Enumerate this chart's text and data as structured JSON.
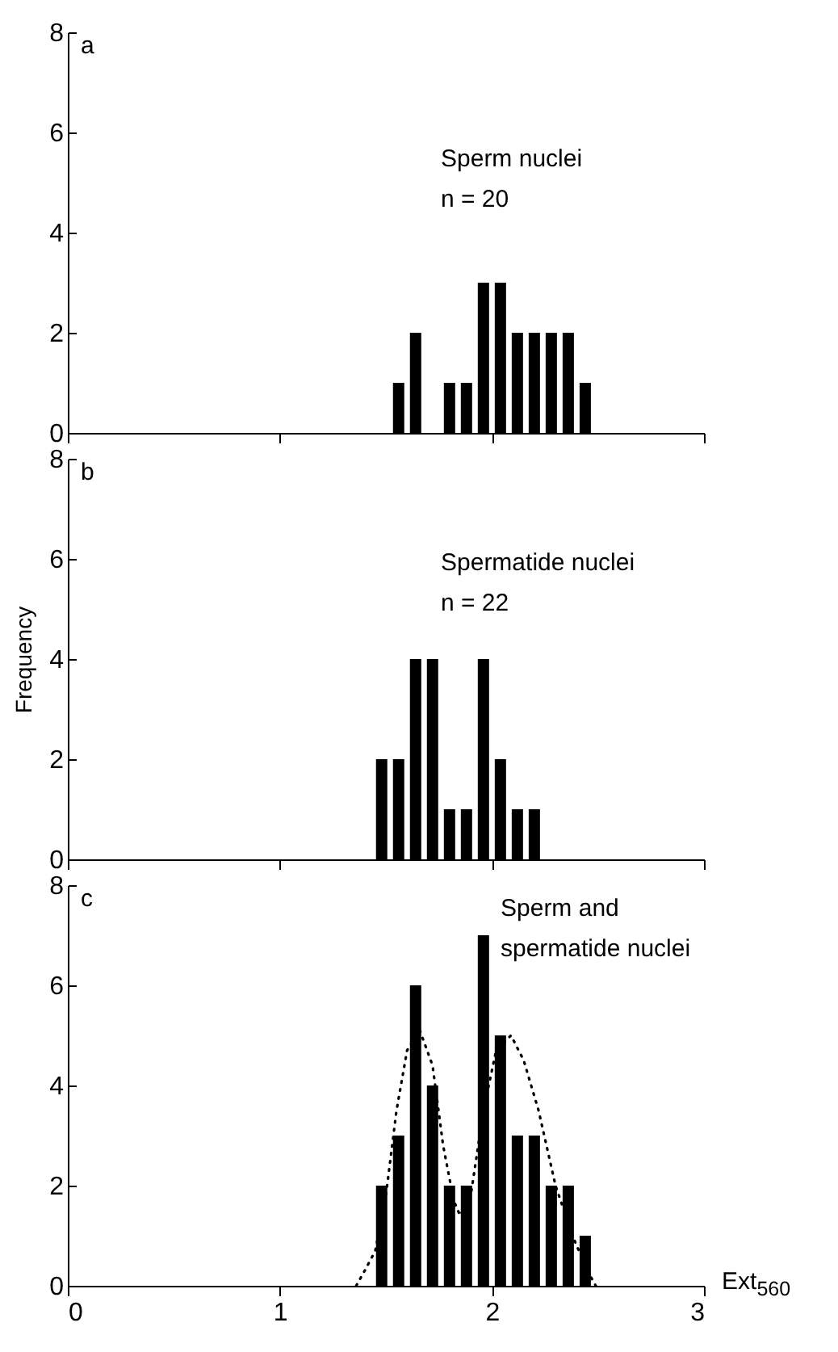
{
  "chart_data": [
    {
      "type": "bar",
      "annotations": [
        "a",
        "Sperm nuclei",
        "n = 20"
      ],
      "xlim": [
        0,
        3
      ],
      "xticks": [
        0,
        1,
        2,
        3
      ],
      "ylim": [
        0,
        8
      ],
      "yticks": [
        0,
        2,
        4,
        6,
        8
      ],
      "tick_labels": "y",
      "grid": false,
      "series": [
        {
          "color": "#000000",
          "x": [
            1.56,
            1.64,
            1.8,
            1.88,
            1.96,
            2.04,
            2.12,
            2.2,
            2.28,
            2.36,
            2.44
          ],
          "values": [
            1,
            2,
            1,
            1,
            3,
            3,
            2,
            2,
            2,
            2,
            1
          ]
        }
      ]
    },
    {
      "type": "bar",
      "ylabel": "Frequency",
      "annotations": [
        "b",
        "Spermatide nuclei",
        "n = 22"
      ],
      "xlim": [
        0,
        3
      ],
      "xticks": [
        0,
        1,
        2,
        3
      ],
      "ylim": [
        0,
        8
      ],
      "yticks": [
        0,
        2,
        4,
        6,
        8
      ],
      "tick_labels": "y",
      "grid": false,
      "series": [
        {
          "color": "#000000",
          "x": [
            1.48,
            1.56,
            1.64,
            1.72,
            1.8,
            1.88,
            1.96,
            2.04,
            2.12,
            2.2
          ],
          "values": [
            2,
            2,
            4,
            4,
            1,
            1,
            4,
            2,
            1,
            1
          ]
        }
      ]
    },
    {
      "type": "bar",
      "xlabel": "Ext$_{560}$",
      "annotations": [
        "c",
        "Sperm and",
        "spermatide nuclei"
      ],
      "xlim": [
        0,
        3
      ],
      "xticks": [
        0,
        1,
        2,
        3
      ],
      "ylim": [
        0,
        8
      ],
      "yticks": [
        0,
        2,
        4,
        6,
        8
      ],
      "grid": false,
      "series": [
        {
          "color": "#000000",
          "x": [
            1.48,
            1.56,
            1.64,
            1.72,
            1.8,
            1.88,
            1.96,
            2.04,
            2.12,
            2.2,
            2.28,
            2.36,
            2.44
          ],
          "values": [
            2,
            3,
            6,
            4,
            2,
            2,
            7,
            5,
            3,
            3,
            2,
            2,
            1
          ]
        },
        {
          "type": "line",
          "color": "#000000",
          "line_style": "dotted",
          "marker": "none",
          "x": [
            1.36,
            1.4,
            1.45,
            1.5,
            1.55,
            1.6,
            1.66,
            1.72,
            1.77,
            1.82,
            1.85,
            1.9,
            1.96,
            2.02,
            2.09,
            2.15,
            2.22,
            2.3,
            2.38,
            2.45,
            2.49
          ],
          "values": [
            0,
            0.3,
            0.7,
            1.8,
            3.5,
            4.7,
            5.1,
            4.4,
            2.8,
            1.7,
            1.4,
            1.8,
            3.5,
            4.7,
            5.0,
            4.5,
            3.5,
            2.0,
            1.0,
            0.3,
            0
          ]
        }
      ]
    }
  ]
}
